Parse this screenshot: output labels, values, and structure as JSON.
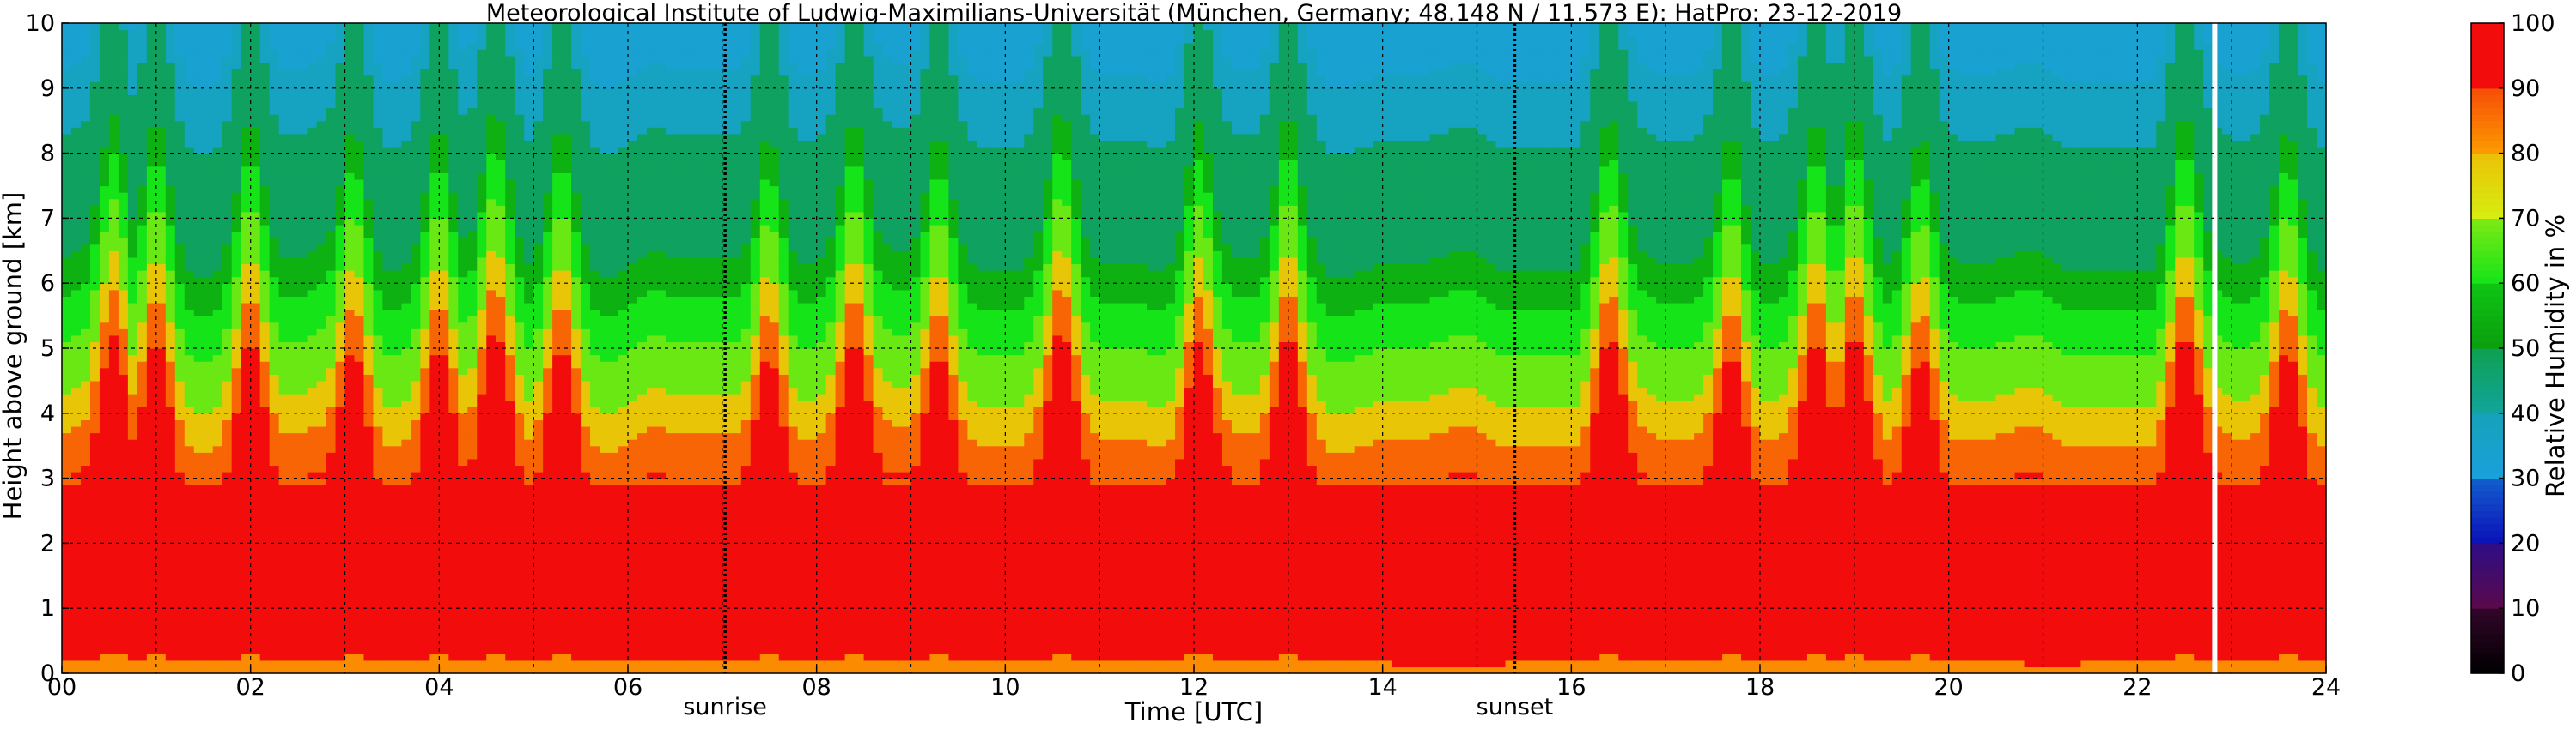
{
  "chart_data": {
    "type": "heatmap",
    "title": "Meteorological Institute of Ludwig-Maximilians-Universität (München, Germany; 48.148 N / 11.573 E):    HatPro: 23-12-2019",
    "xlabel": "Time [UTC]",
    "ylabel": "Height above ground [km]",
    "xlim": [
      0,
      24
    ],
    "ylim": [
      0,
      10
    ],
    "x_tick_labels": [
      "00",
      "02",
      "04",
      "06",
      "08",
      "10",
      "12",
      "14",
      "16",
      "18",
      "20",
      "22",
      "24"
    ],
    "x_ticks": [
      0,
      2,
      4,
      6,
      8,
      10,
      12,
      14,
      16,
      18,
      20,
      22,
      24
    ],
    "y_tick_labels": [
      "0",
      "1",
      "2",
      "3",
      "4",
      "5",
      "6",
      "7",
      "8",
      "9",
      "10"
    ],
    "y_ticks": [
      0,
      1,
      2,
      3,
      4,
      5,
      6,
      7,
      8,
      9,
      10
    ],
    "grid": true,
    "annotations": [
      {
        "text": "sunrise",
        "x": 7.03
      },
      {
        "text": "sunset",
        "x": 15.4
      }
    ],
    "colorbar": {
      "label": "Relative Humidity in %",
      "ticks": [
        0,
        10,
        20,
        30,
        40,
        50,
        60,
        70,
        80,
        90,
        100
      ],
      "tick_labels": [
        "0",
        "10",
        "20",
        "30",
        "40",
        "50",
        "60",
        "70",
        "80",
        "90",
        "100"
      ]
    },
    "humidity_profile_layers_km": [
      {
        "from": 0.0,
        "to": 0.15,
        "rh": 82
      },
      {
        "from": 0.15,
        "to": 2.9,
        "rh": 93
      },
      {
        "from": 2.9,
        "to": 3.6,
        "rh": 87
      },
      {
        "from": 3.6,
        "to": 4.2,
        "rh": 79
      },
      {
        "from": 4.2,
        "to": 5.0,
        "rh": 68
      },
      {
        "from": 5.0,
        "to": 5.7,
        "rh": 60
      },
      {
        "from": 5.7,
        "to": 6.3,
        "rh": 55
      },
      {
        "from": 6.3,
        "to": 8.2,
        "rh": 48
      },
      {
        "from": 8.2,
        "to": 9.2,
        "rh": 38
      },
      {
        "from": 9.2,
        "to": 10.0,
        "rh": 33
      }
    ],
    "moist_plumes_hours": [
      0.55,
      1.0,
      2.0,
      3.1,
      4.0,
      4.6,
      5.3,
      7.5,
      8.4,
      9.3,
      10.6,
      12.05,
      13.0,
      16.4,
      17.7,
      18.6,
      19.0,
      19.7,
      22.5,
      23.6
    ],
    "white_gap_hour": 22.82
  },
  "colors": {
    "background": "#ffffff",
    "grid": "#000000",
    "scale": [
      "#000000",
      "#5a0a4a",
      "#0a10b8",
      "#1aa0dc",
      "#12a49e",
      "#0a9e0e",
      "#14e418",
      "#d6ee10",
      "#fc9c00",
      "#f20c0c",
      "#d8c0b8"
    ]
  }
}
